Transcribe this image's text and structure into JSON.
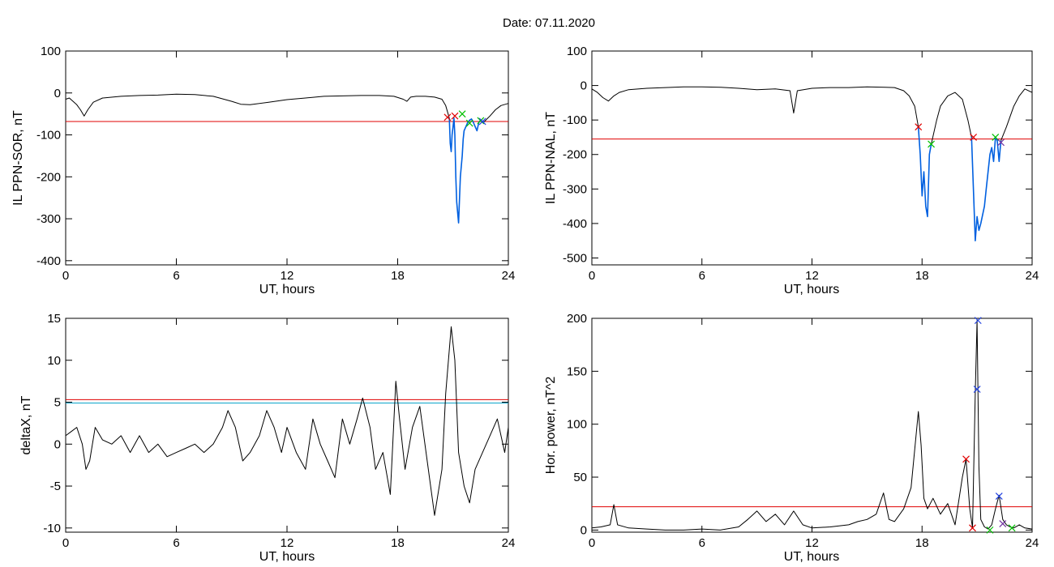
{
  "header": {
    "title": "Date:  07.11.2020"
  },
  "colors": {
    "trace": "#000000",
    "threshold": "#e00000",
    "threshold_alt": "#00a0c8",
    "highlight": "#0060e0",
    "cross_red": "#e00000",
    "cross_green": "#00c000",
    "cross_blue": "#2040e0",
    "cross_purple": "#7030a0"
  },
  "chart_data": [
    {
      "id": "p1",
      "type": "line",
      "xlabel": "UT, hours",
      "ylabel": "IL PPN-SOR, nT",
      "xlim": [
        0,
        24
      ],
      "ylim": [
        -410,
        100
      ],
      "xticks": [
        0,
        6,
        12,
        18,
        24
      ],
      "yticks": [
        100,
        0,
        -100,
        -200,
        -300,
        -400
      ],
      "threshold": -68,
      "series": [
        {
          "x": [
            0,
            0.2,
            0.4,
            0.6,
            0.8,
            1.0,
            1.2,
            1.5,
            2.0,
            3.0,
            4.0,
            5.0,
            6.0,
            7.0,
            8.0,
            8.5,
            9.0,
            9.5,
            10.0,
            11.0,
            12.0,
            13.0,
            14.0,
            15.0,
            16.0,
            17.0,
            17.8,
            18.3,
            18.5,
            18.7,
            19.0,
            19.5,
            20.0,
            20.4,
            20.6,
            20.8
          ],
          "y": [
            -15,
            -12,
            -20,
            -28,
            -40,
            -55,
            -40,
            -22,
            -12,
            -8,
            -6,
            -5,
            -3,
            -4,
            -8,
            -14,
            -20,
            -27,
            -28,
            -22,
            -16,
            -12,
            -8,
            -7,
            -6,
            -6,
            -8,
            -15,
            -20,
            -10,
            -8,
            -8,
            -10,
            -15,
            -30,
            -60
          ]
        },
        {
          "x": [
            20.8,
            20.85,
            20.9,
            20.95,
            21.0,
            21.05,
            21.1,
            21.15,
            21.2,
            21.3,
            21.4,
            21.5,
            21.55,
            21.6,
            21.7,
            21.8,
            21.9,
            22.0,
            22.1,
            22.2,
            22.3,
            22.4,
            22.5,
            22.6,
            22.7
          ],
          "y": [
            -60,
            -120,
            -140,
            -100,
            -80,
            -60,
            -100,
            -200,
            -260,
            -310,
            -200,
            -150,
            -110,
            -90,
            -80,
            -70,
            -65,
            -62,
            -70,
            -80,
            -90,
            -70,
            -65,
            -70,
            -68
          ],
          "highlight": true
        },
        {
          "x": [
            22.7,
            23.0,
            23.3,
            23.6,
            24.0
          ],
          "y": [
            -68,
            -55,
            -40,
            -30,
            -25
          ]
        }
      ],
      "markers": [
        {
          "x": 20.7,
          "y": -58,
          "color": "cross_red"
        },
        {
          "x": 21.1,
          "y": -55,
          "color": "cross_red"
        },
        {
          "x": 21.5,
          "y": -50,
          "color": "cross_green"
        },
        {
          "x": 21.9,
          "y": -72,
          "color": "cross_green"
        },
        {
          "x": 22.5,
          "y": -66,
          "color": "cross_green"
        },
        {
          "x": 22.6,
          "y": -68,
          "color": "cross_blue"
        }
      ]
    },
    {
      "id": "p2",
      "type": "line",
      "xlabel": "UT, hours",
      "ylabel": "IL PPN-NAL, nT",
      "xlim": [
        0,
        24
      ],
      "ylim": [
        -520,
        100
      ],
      "xticks": [
        0,
        6,
        12,
        18,
        24
      ],
      "yticks": [
        100,
        0,
        -100,
        -200,
        -300,
        -400,
        -500
      ],
      "threshold": -155,
      "series": [
        {
          "x": [
            0,
            0.3,
            0.6,
            0.9,
            1.2,
            1.5,
            2.0,
            3.0,
            4.0,
            5.0,
            6.0,
            7.0,
            8.0,
            9.0,
            10.0,
            10.8,
            11.0,
            11.2,
            12.0,
            13.0,
            14.0,
            15.0,
            16.0,
            16.5,
            17.0,
            17.3,
            17.6,
            17.8
          ],
          "y": [
            -10,
            -20,
            -35,
            -45,
            -30,
            -20,
            -12,
            -8,
            -6,
            -4,
            -4,
            -5,
            -8,
            -12,
            -10,
            -15,
            -80,
            -15,
            -8,
            -6,
            -6,
            -4,
            -5,
            -6,
            -15,
            -30,
            -60,
            -120
          ]
        },
        {
          "x": [
            17.8,
            17.9,
            18.0,
            18.1,
            18.2,
            18.3,
            18.4,
            18.5
          ],
          "y": [
            -120,
            -200,
            -320,
            -250,
            -350,
            -380,
            -200,
            -170
          ],
          "highlight": true
        },
        {
          "x": [
            18.5,
            18.8,
            19.0,
            19.4,
            19.8,
            20.2,
            20.5,
            20.7
          ],
          "y": [
            -170,
            -100,
            -60,
            -30,
            -20,
            -40,
            -100,
            -150
          ]
        },
        {
          "x": [
            20.7,
            20.8,
            20.9,
            21.0,
            21.1,
            21.2,
            21.4,
            21.5,
            21.6,
            21.7,
            21.8,
            21.9,
            22.0,
            22.1,
            22.2,
            22.3
          ],
          "y": [
            -150,
            -300,
            -450,
            -380,
            -420,
            -400,
            -350,
            -300,
            -250,
            -200,
            -180,
            -220,
            -150,
            -160,
            -220,
            -160
          ],
          "highlight": true
        },
        {
          "x": [
            22.3,
            22.6,
            23.0,
            23.3,
            23.6,
            24.0
          ],
          "y": [
            -160,
            -120,
            -60,
            -30,
            -10,
            -20
          ]
        }
      ],
      "markers": [
        {
          "x": 17.8,
          "y": -120,
          "color": "cross_red"
        },
        {
          "x": 18.5,
          "y": -170,
          "color": "cross_green"
        },
        {
          "x": 20.8,
          "y": -150,
          "color": "cross_red"
        },
        {
          "x": 22.0,
          "y": -150,
          "color": "cross_green"
        },
        {
          "x": 22.3,
          "y": -165,
          "color": "cross_purple"
        }
      ]
    },
    {
      "id": "p3",
      "type": "line",
      "xlabel": "UT, hours",
      "ylabel": "deltaX, nT",
      "xlim": [
        0,
        24
      ],
      "ylim": [
        -10.5,
        15
      ],
      "xticks": [
        0,
        6,
        12,
        18,
        24
      ],
      "yticks": [
        15,
        10,
        5,
        0,
        -5,
        -10
      ],
      "threshold": 5.3,
      "threshold_alt": 4.9,
      "series": [
        {
          "x": [
            0,
            0.3,
            0.6,
            0.9,
            1.1,
            1.3,
            1.6,
            2.0,
            2.5,
            3.0,
            3.5,
            4.0,
            4.5,
            5.0,
            5.5,
            6.0,
            6.5,
            7.0,
            7.5,
            8.0,
            8.5,
            8.8,
            9.2,
            9.6,
            10.0,
            10.5,
            10.9,
            11.3,
            11.7,
            12.0,
            12.5,
            13.0,
            13.4,
            13.8,
            14.2,
            14.6,
            15.0,
            15.4,
            15.8,
            16.1,
            16.5,
            16.8,
            17.2,
            17.6,
            17.9,
            18.1,
            18.4,
            18.8,
            19.2,
            19.6,
            20.0,
            20.4,
            20.6,
            20.9,
            21.1,
            21.3,
            21.6,
            21.9,
            22.2,
            22.6,
            23.0,
            23.4,
            23.8,
            24.0
          ],
          "y": [
            1,
            1.5,
            2,
            0,
            -3,
            -2,
            2,
            0.5,
            0,
            1,
            -1,
            1,
            -1,
            0,
            -1.5,
            -1,
            -0.5,
            0,
            -1,
            0,
            2,
            4,
            2,
            -2,
            -1,
            1,
            4,
            2,
            -1,
            2,
            -1,
            -3,
            3,
            0,
            -2,
            -4,
            3,
            0,
            3,
            5.5,
            2,
            -3,
            -1,
            -6,
            7.5,
            3,
            -3,
            2,
            4.5,
            -2,
            -8.5,
            -3,
            6,
            14,
            10,
            -1,
            -5,
            -7,
            -3,
            -1,
            1,
            3,
            -1,
            2
          ]
        }
      ],
      "markers": []
    },
    {
      "id": "p4",
      "type": "line",
      "xlabel": "UT, hours",
      "ylabel": "Hor. power, nT^2",
      "xlim": [
        0,
        24
      ],
      "ylim": [
        -2,
        200
      ],
      "xticks": [
        0,
        6,
        12,
        18,
        24
      ],
      "yticks": [
        200,
        150,
        100,
        50,
        0
      ],
      "threshold": 22,
      "series": [
        {
          "x": [
            0,
            0.5,
            1.0,
            1.2,
            1.4,
            2.0,
            3.0,
            4.0,
            5.0,
            6.0,
            7.0,
            8.0,
            8.5,
            9.0,
            9.5,
            10.0,
            10.5,
            11.0,
            11.5,
            12.0,
            13.0,
            14.0,
            14.5,
            15.0,
            15.5,
            15.9,
            16.2,
            16.5,
            17.0,
            17.4,
            17.8,
            17.95,
            18.1,
            18.3,
            18.6,
            19.0,
            19.4,
            19.8,
            20.2,
            20.4,
            20.6,
            20.75,
            20.9,
            21.0,
            21.1,
            21.2,
            21.4,
            21.6,
            21.8,
            22.0,
            22.2,
            22.4,
            22.6,
            22.8,
            23.0,
            23.3,
            23.6,
            24.0
          ],
          "y": [
            2,
            3,
            5,
            24,
            5,
            2,
            1,
            0,
            0,
            1,
            0,
            3,
            10,
            18,
            8,
            15,
            5,
            18,
            5,
            2,
            3,
            5,
            8,
            10,
            15,
            35,
            10,
            8,
            20,
            40,
            112,
            80,
            30,
            20,
            30,
            15,
            25,
            5,
            50,
            67,
            20,
            2,
            130,
            198,
            60,
            10,
            3,
            1,
            5,
            20,
            33,
            10,
            5,
            3,
            2,
            5,
            2,
            1
          ]
        }
      ],
      "markers": [
        {
          "x": 20.4,
          "y": 67,
          "color": "cross_red"
        },
        {
          "x": 20.75,
          "y": 2,
          "color": "cross_red"
        },
        {
          "x": 21.0,
          "y": 133,
          "color": "cross_blue"
        },
        {
          "x": 21.05,
          "y": 198,
          "color": "cross_blue"
        },
        {
          "x": 21.7,
          "y": 0,
          "color": "cross_green"
        },
        {
          "x": 22.2,
          "y": 32,
          "color": "cross_blue"
        },
        {
          "x": 22.4,
          "y": 6,
          "color": "cross_purple"
        },
        {
          "x": 22.9,
          "y": 2,
          "color": "cross_green"
        }
      ]
    }
  ]
}
